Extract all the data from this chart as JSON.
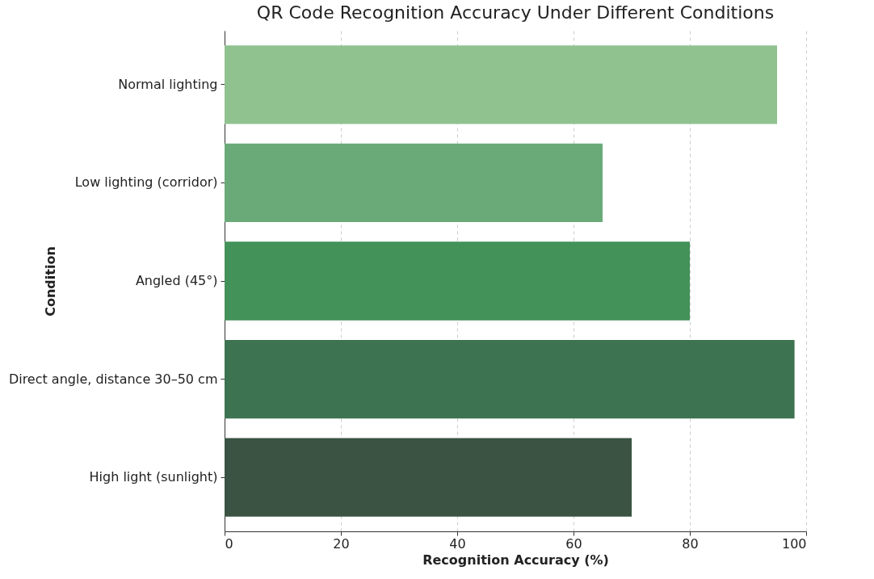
{
  "chart_data": {
    "type": "bar",
    "orientation": "horizontal",
    "title": "QR Code Recognition Accuracy Under Different Conditions",
    "xlabel": "Recognition Accuracy (%)",
    "ylabel": "Condition",
    "categories": [
      "Normal lighting",
      "Low lighting (corridor)",
      "Angled (45°)",
      "Direct angle, distance 30–50 cm",
      "High light (sunlight)"
    ],
    "values": [
      95,
      65,
      80,
      98,
      70
    ],
    "colors": [
      "#90c290",
      "#6aaa78",
      "#43925a",
      "#3d7350",
      "#3a5342"
    ],
    "xlim": [
      0,
      100
    ],
    "xticks": [
      0,
      20,
      40,
      60,
      80,
      100
    ],
    "grid": "x"
  }
}
